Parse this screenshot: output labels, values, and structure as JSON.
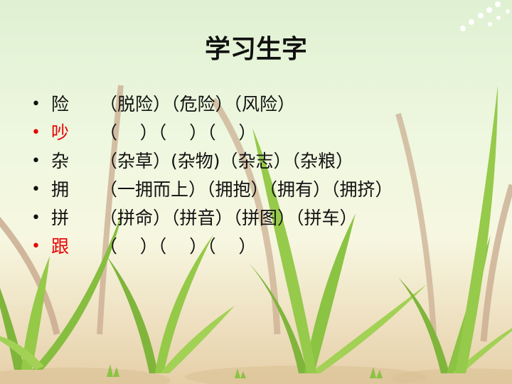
{
  "title": "学习生字",
  "bullet": "•",
  "items": [
    {
      "char": "险",
      "words": "（脱险）（危险）（风险）",
      "highlight": false
    },
    {
      "char": "吵",
      "words": "（    ）（    ）（    ）",
      "highlight": true
    },
    {
      "char": "杂",
      "words": "（杂草）(杂物)（杂志）（杂粮）",
      "highlight": false
    },
    {
      "char": "拥",
      "words": "（一拥而上）（拥抱）（拥有）（拥挤）",
      "highlight": false
    },
    {
      "char": "拼",
      "words": "（拼命）（拼音）（拼图）（拼车）",
      "highlight": false
    },
    {
      "char": "跟",
      "words": "（    ）（    ）（    ）",
      "highlight": true
    }
  ],
  "colors": {
    "highlight": "#e60000",
    "text": "#111111",
    "leaf": "#8fc43e",
    "dry_leaf": "#c9a98a"
  }
}
